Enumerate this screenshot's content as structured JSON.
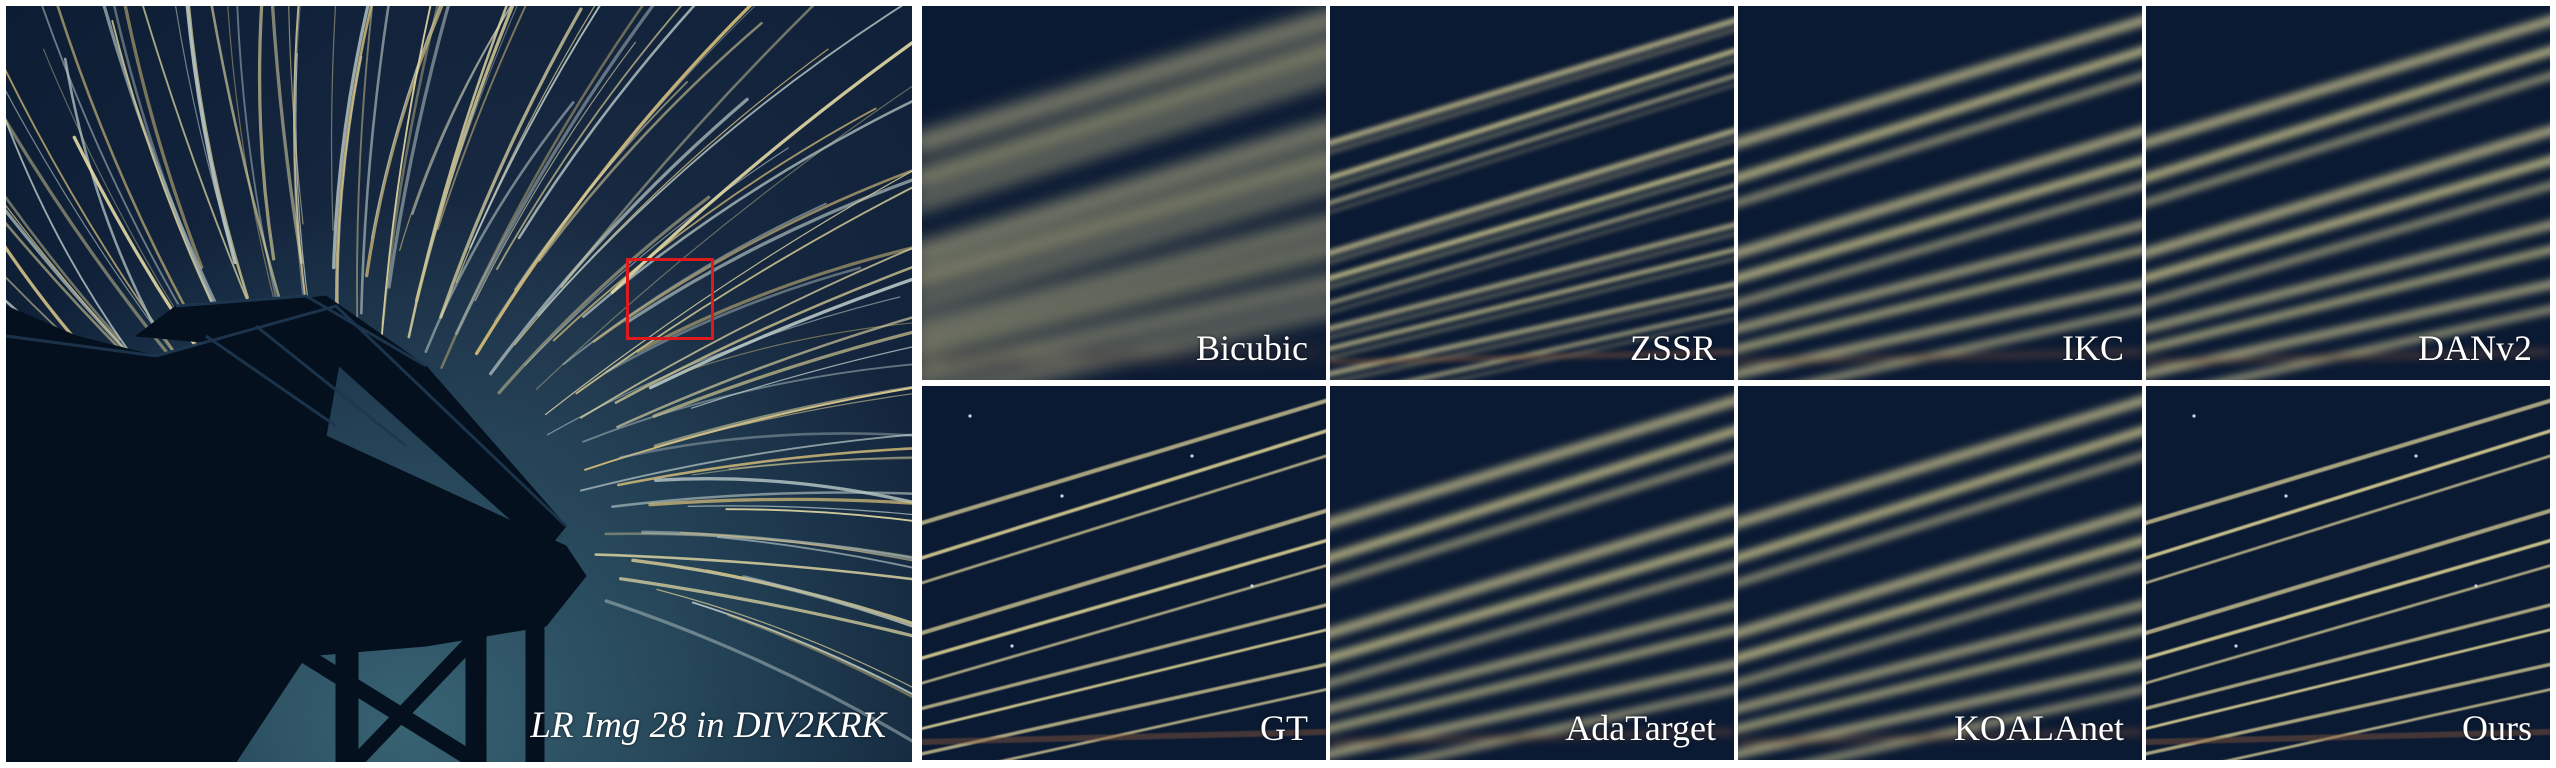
{
  "main_image": {
    "caption": "LR Img 28 in DIV2KRK",
    "zoom_box_color": "#e0191f"
  },
  "crops": [
    {
      "label": "Bicubic",
      "style": "blurry"
    },
    {
      "label": "ZSSR",
      "style": "ringing"
    },
    {
      "label": "IKC",
      "style": "soft"
    },
    {
      "label": "DANv2",
      "style": "soft"
    },
    {
      "label": "GT",
      "style": "sharp"
    },
    {
      "label": "AdaTarget",
      "style": "soft"
    },
    {
      "label": "KOALAnet",
      "style": "soft"
    },
    {
      "label": "Ours",
      "style": "sharp"
    }
  ],
  "colors": {
    "sky": "#0b1a33",
    "streak": "#cfc48c",
    "structure": "#04101d"
  }
}
